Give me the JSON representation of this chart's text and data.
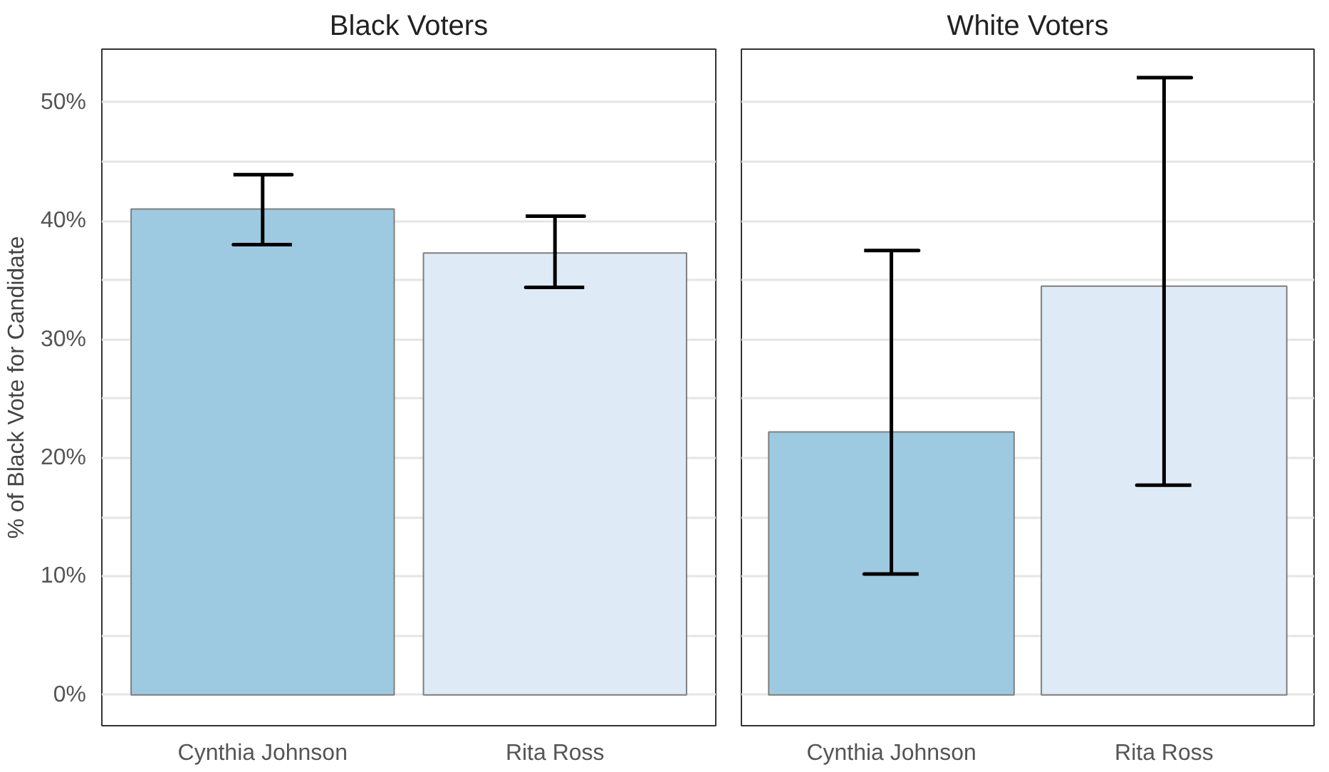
{
  "chart_data": [
    {
      "type": "bar",
      "title": "Black Voters",
      "ylabel": "% of Black Vote for Candidate",
      "categories": [
        "Cynthia Johnson",
        "Rita Ross"
      ],
      "values": [
        41,
        37.3
      ],
      "colors": [
        "#9ecae1",
        "#deebf7"
      ],
      "errors": [
        [
          38,
          43.9
        ],
        [
          34.4,
          40.4
        ]
      ],
      "ylim": [
        -2.6,
        54.5
      ],
      "yticks": [
        {
          "value": 0,
          "label": "0%"
        },
        {
          "value": 5,
          "label": null
        },
        {
          "value": 10,
          "label": "10%"
        },
        {
          "value": 15,
          "label": null
        },
        {
          "value": 20,
          "label": "20%"
        },
        {
          "value": 25,
          "label": null
        },
        {
          "value": 30,
          "label": "30%"
        },
        {
          "value": 35,
          "label": null
        },
        {
          "value": 40,
          "label": "40%"
        },
        {
          "value": 45,
          "label": null
        },
        {
          "value": 50,
          "label": "50%"
        }
      ],
      "grid": "y"
    },
    {
      "type": "bar",
      "title": "White Voters",
      "categories": [
        "Cynthia Johnson",
        "Rita Ross"
      ],
      "values": [
        22.2,
        34.5
      ],
      "colors": [
        "#9ecae1",
        "#deebf7"
      ],
      "errors": [
        [
          10.2,
          37.5
        ],
        [
          17.7,
          52.1
        ]
      ],
      "ylim": [
        -2.6,
        54.5
      ],
      "yticks": [
        {
          "value": 0,
          "label": null
        },
        {
          "value": 5,
          "label": null
        },
        {
          "value": 10,
          "label": null
        },
        {
          "value": 15,
          "label": null
        },
        {
          "value": 20,
          "label": null
        },
        {
          "value": 25,
          "label": null
        },
        {
          "value": 30,
          "label": null
        },
        {
          "value": 35,
          "label": null
        },
        {
          "value": 40,
          "label": null
        },
        {
          "value": 45,
          "label": null
        },
        {
          "value": 50,
          "label": null
        }
      ],
      "grid": "y",
      "tick_labels": "x"
    }
  ]
}
